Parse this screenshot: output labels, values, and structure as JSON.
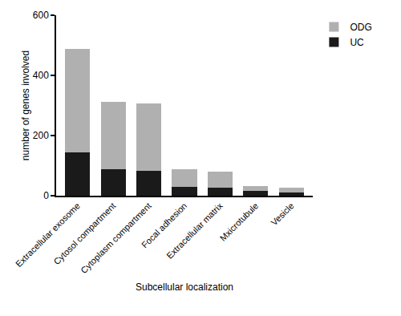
{
  "chart_data": {
    "type": "bar",
    "stacked": true,
    "x_label": "Subcellular localization",
    "y_label": "number of genes involved",
    "categories": [
      "Extracellular exosome",
      "Cytosol compartment",
      "Cytoplasm compartment",
      "Focal adhesion",
      "Extracellular matrix",
      "Mxicrotubule",
      "Vesicle"
    ],
    "series": [
      {
        "name": "UC",
        "color": "#1a1a1a",
        "values": [
          145,
          87,
          83,
          30,
          27,
          15,
          10
        ]
      },
      {
        "name": "ODG",
        "color": "#b0b0b0",
        "values": [
          342,
          226,
          225,
          58,
          53,
          18,
          17
        ]
      }
    ],
    "ylim": [
      0,
      600
    ],
    "yticks": [
      0,
      200,
      400,
      600
    ],
    "grid": false,
    "legend": "upper right"
  }
}
